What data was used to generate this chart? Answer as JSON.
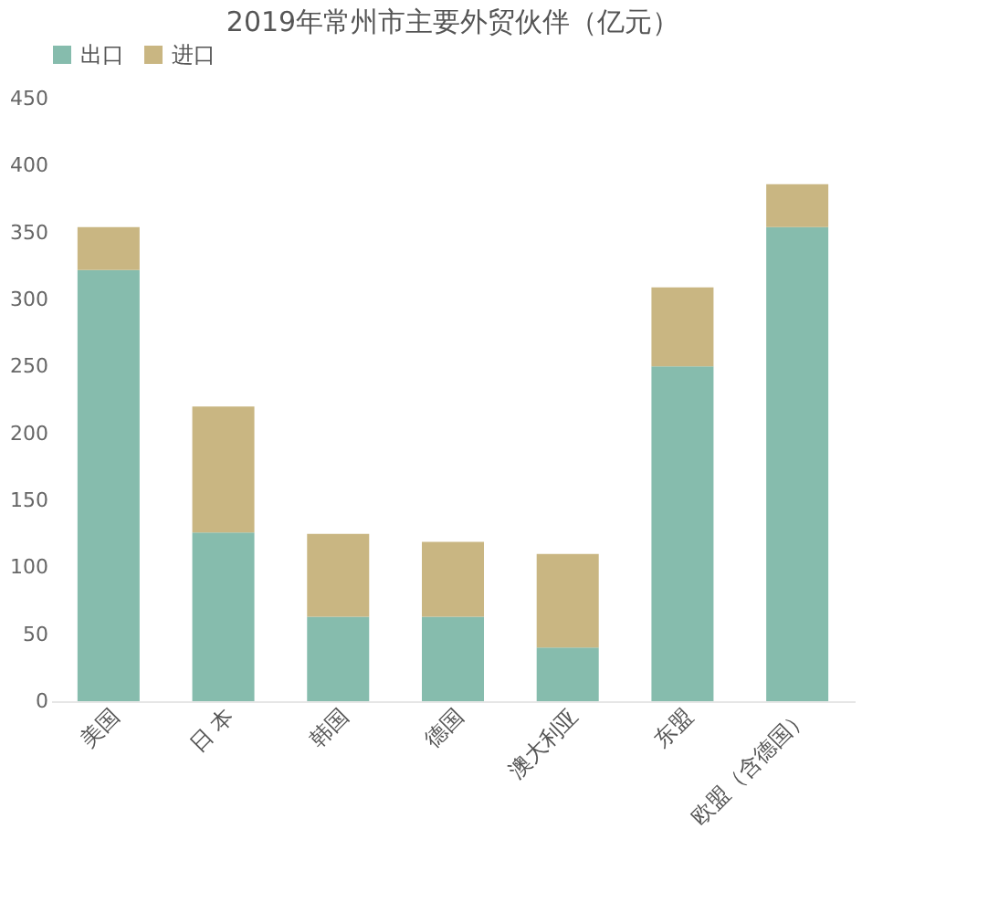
{
  "chart_data": {
    "type": "bar",
    "title": "2019年常州市主要外贸伙伴（亿元）",
    "categories": [
      "美国",
      "日 本",
      "韩国",
      "德国",
      "澳大利亚",
      "东盟",
      "欧盟（含德国）"
    ],
    "stacked": true,
    "series": [
      {
        "name": "出口",
        "color": "#86bcad",
        "values": [
          322,
          126,
          63,
          63,
          40,
          250,
          354
        ]
      },
      {
        "name": "进口",
        "color": "#c9b682",
        "values": [
          32,
          94,
          62,
          56,
          70,
          59,
          32
        ]
      }
    ],
    "ylim": [
      0,
      450
    ],
    "yticks": [
      0,
      50,
      100,
      150,
      200,
      250,
      300,
      350,
      400,
      450
    ],
    "grid": false,
    "legend": "top"
  }
}
